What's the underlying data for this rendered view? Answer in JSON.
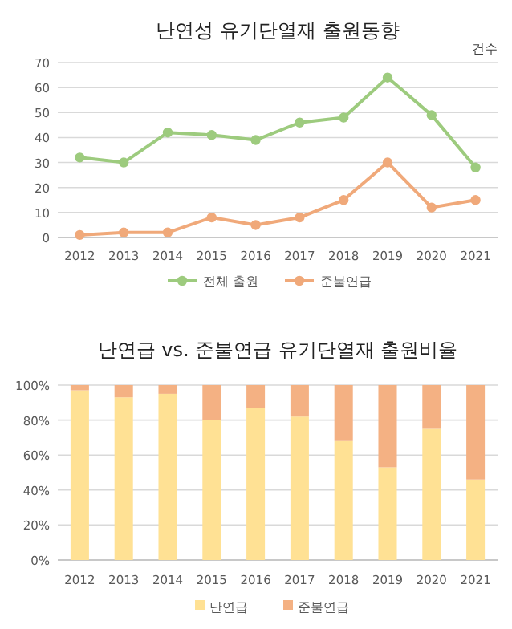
{
  "chart_data": [
    {
      "type": "line",
      "title": "난연성 유기단열재 출원동향",
      "ylabel": "건수",
      "categories": [
        "2012",
        "2013",
        "2014",
        "2015",
        "2016",
        "2017",
        "2018",
        "2019",
        "2020",
        "2021"
      ],
      "series": [
        {
          "name": "전체 출원",
          "color": "#9dcb7e",
          "values": [
            32,
            30,
            42,
            41,
            39,
            46,
            48,
            64,
            49,
            28
          ]
        },
        {
          "name": "준불연급",
          "color": "#f0a97a",
          "values": [
            1,
            2,
            2,
            8,
            5,
            8,
            15,
            30,
            12,
            15
          ]
        }
      ],
      "ylim": [
        0,
        70
      ],
      "yticks": [
        0,
        10,
        20,
        30,
        40,
        50,
        60,
        70
      ],
      "grid": "y",
      "legend": "bottom",
      "marker": "circle",
      "line_style": "solid"
    },
    {
      "type": "bar",
      "title": "난연급 vs. 준불연급 유기단열재 출원비율",
      "stacked": true,
      "categories": [
        "2012",
        "2013",
        "2014",
        "2015",
        "2016",
        "2017",
        "2018",
        "2019",
        "2020",
        "2021"
      ],
      "series": [
        {
          "name": "난연급",
          "color": "#ffe194",
          "values": [
            97,
            93,
            95,
            80,
            87,
            82,
            68,
            53,
            75,
            46
          ]
        },
        {
          "name": "준불연급",
          "color": "#f4b183",
          "values": [
            3,
            7,
            5,
            20,
            13,
            18,
            32,
            47,
            25,
            54
          ]
        }
      ],
      "ylim": [
        0,
        100
      ],
      "yticks": [
        {
          "value": 0,
          "label": "0%"
        },
        {
          "value": 20,
          "label": "20%"
        },
        {
          "value": 40,
          "label": "40%"
        },
        {
          "value": 60,
          "label": "60%"
        },
        {
          "value": 80,
          "label": "80%"
        },
        {
          "value": 100,
          "label": "100%"
        }
      ],
      "grid": "y",
      "legend": "bottom"
    }
  ]
}
